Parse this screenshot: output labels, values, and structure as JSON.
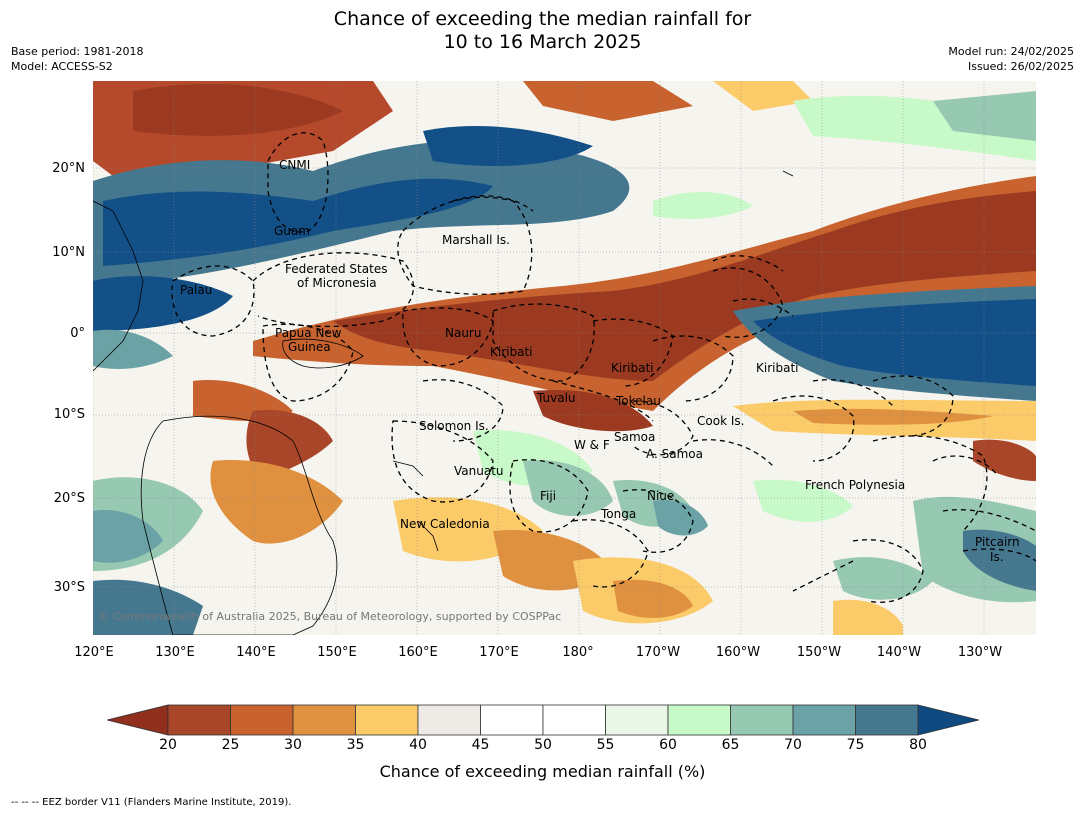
{
  "title": {
    "line1": "Chance of exceeding the median rainfall for",
    "line2": "10 to 16 March 2025"
  },
  "meta_left": {
    "base_period": "Base period: 1981-2018",
    "model": "Model: ACCESS-S2"
  },
  "meta_right": {
    "model_run": "Model run: 24/02/2025",
    "issued": "Issued: 26/02/2025"
  },
  "map": {
    "lat_labels": [
      "20°N",
      "10°N",
      "0°",
      "10°S",
      "20°S",
      "30°S"
    ],
    "lon_labels": [
      "120°E",
      "130°E",
      "140°E",
      "150°E",
      "160°E",
      "170°E",
      "180°",
      "170°W",
      "160°W",
      "150°W",
      "140°W",
      "130°W"
    ],
    "places": [
      "CNMI",
      "Guam",
      "Marshall Is.",
      "Federated States",
      "of Micronesia",
      "Palau",
      "Papua New",
      "Guinea",
      "Nauru",
      "Kiribati",
      "Kiribati",
      "Kiribati",
      "Tuvalu",
      "Tokelau",
      "Cook Is.",
      "Solomon Is.",
      "Samoa",
      "W & F",
      "A. Samoa",
      "Vanuatu",
      "Fiji",
      "Niue",
      "French Polynesia",
      "Tonga",
      "New Caledonia",
      "Pitcairn",
      "Is."
    ],
    "copyright": "© Commonwealth of Australia 2025, Bureau of Meteorology, supported by COSPPac"
  },
  "colorbar": {
    "ticks": [
      "20",
      "25",
      "30",
      "35",
      "40",
      "45",
      "50",
      "55",
      "60",
      "65",
      "70",
      "75",
      "80"
    ],
    "colors": [
      "#a9462a",
      "#c8632f",
      "#e0913f",
      "#fbcb6a",
      "#eeebe6",
      "#ffffff",
      "#ffffff",
      "#e8f7e8",
      "#c8f9c8",
      "#97c8b2",
      "#6aa2a6",
      "#45788f",
      "#135088"
    ],
    "low_color": "#8f2f1c",
    "high_color": "#0f4a80",
    "label": "Chance of exceeding median rainfall (%)"
  },
  "footnote": "-- -- -- EEZ border V11 (Flanders Marine Institute, 2019)."
}
